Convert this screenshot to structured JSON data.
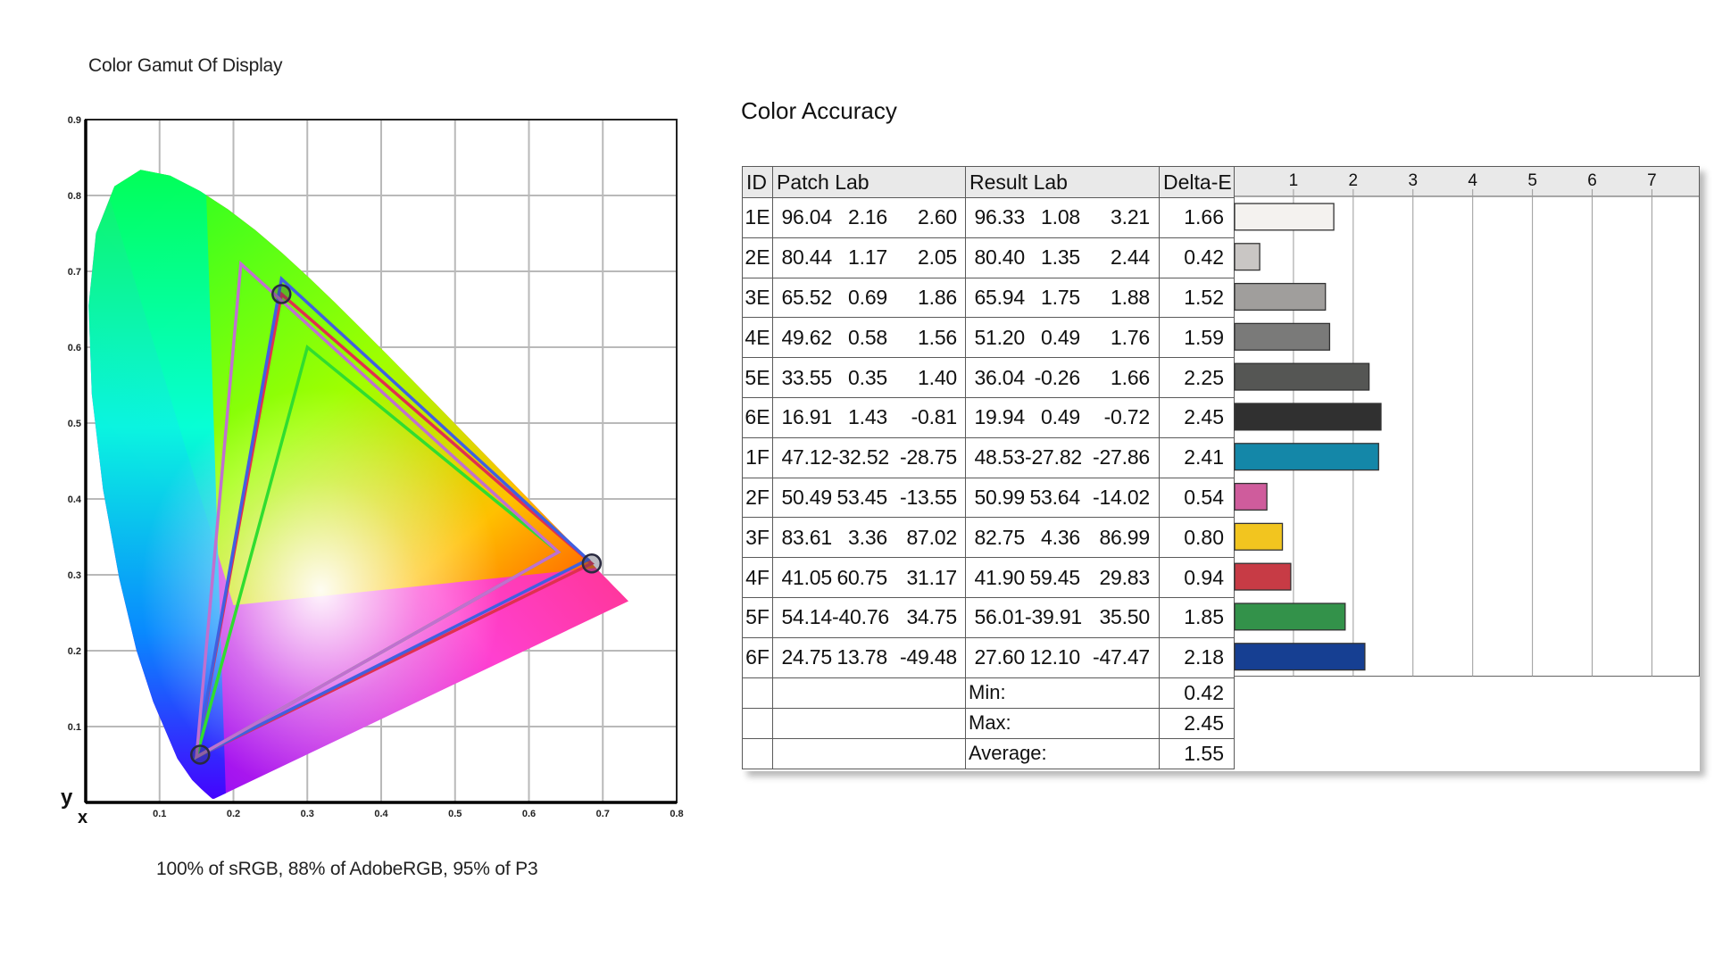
{
  "gamut": {
    "title": "Color Gamut Of Display",
    "caption": "100% of sRGB, 88% of AdobeRGB, 95% of P3",
    "axis_x_letter": "x",
    "axis_y_letter": "y",
    "x_ticks": [
      "0.1",
      "0.2",
      "0.3",
      "0.4",
      "0.5",
      "0.6",
      "0.7",
      "0.8"
    ],
    "y_ticks": [
      "0.1",
      "0.2",
      "0.3",
      "0.4",
      "0.5",
      "0.6",
      "0.7",
      "0.8",
      "0.9"
    ]
  },
  "accuracy": {
    "title": "Color Accuracy",
    "headers": {
      "id": "ID",
      "patch": "Patch Lab",
      "result": "Result Lab",
      "delta": "Delta-E"
    },
    "scale_ticks": [
      "1",
      "2",
      "3",
      "4",
      "5",
      "6",
      "7"
    ],
    "stats": [
      {
        "label": "Min:",
        "value": "0.42"
      },
      {
        "label": "Max:",
        "value": "2.45"
      },
      {
        "label": "Average:",
        "value": "1.55"
      }
    ]
  },
  "chart_data": [
    {
      "type": "scatter",
      "title": "Color Gamut Of Display",
      "subtitle": "100% of sRGB, 88% of AdobeRGB, 95% of P3",
      "xlabel": "x",
      "ylabel": "y",
      "xlim": [
        0,
        0.8
      ],
      "ylim": [
        0,
        0.9
      ],
      "grid": true,
      "series": [
        {
          "color": "#e03050",
          "points": [
            [
              0.685,
              0.315
            ],
            [
              0.265,
              0.67
            ],
            [
              0.15,
              0.06
            ]
          ]
        },
        {
          "color": "#4060e0",
          "points": [
            [
              0.68,
              0.32
            ],
            [
              0.265,
              0.69
            ],
            [
              0.15,
              0.06
            ]
          ]
        },
        {
          "color": "#30dd30",
          "points": [
            [
              0.64,
              0.33
            ],
            [
              0.3,
              0.6
            ],
            [
              0.15,
              0.06
            ]
          ]
        },
        {
          "color": "#c070d0",
          "points": [
            [
              0.64,
              0.33
            ],
            [
              0.21,
              0.71
            ],
            [
              0.15,
              0.06
            ]
          ]
        }
      ],
      "markers": [
        [
          0.265,
          0.67
        ],
        [
          0.685,
          0.315
        ],
        [
          0.155,
          0.063
        ]
      ]
    },
    {
      "type": "table",
      "title": "Color Accuracy",
      "columns": [
        "ID",
        "Patch Lab",
        "Result Lab",
        "Delta-E"
      ],
      "bar_axis": {
        "min": 0,
        "max": 7.8,
        "ticks": [
          1,
          2,
          3,
          4,
          5,
          6,
          7
        ]
      },
      "rows": [
        {
          "id": "1E",
          "patch": [
            "96.04",
            "2.16",
            "2.60"
          ],
          "result": [
            "96.33",
            "1.08",
            "3.21"
          ],
          "delta": "1.66",
          "value": 1.66,
          "color": "#f4f2ef"
        },
        {
          "id": "2E",
          "patch": [
            "80.44",
            "1.17",
            "2.05"
          ],
          "result": [
            "80.40",
            "1.35",
            "2.44"
          ],
          "delta": "0.42",
          "value": 0.42,
          "color": "#c9c6c4"
        },
        {
          "id": "3E",
          "patch": [
            "65.52",
            "0.69",
            "1.86"
          ],
          "result": [
            "65.94",
            "1.75",
            "1.88"
          ],
          "delta": "1.52",
          "value": 1.52,
          "color": "#a09e9c"
        },
        {
          "id": "4E",
          "patch": [
            "49.62",
            "0.58",
            "1.56"
          ],
          "result": [
            "51.20",
            "0.49",
            "1.76"
          ],
          "delta": "1.59",
          "value": 1.59,
          "color": "#7a7a79"
        },
        {
          "id": "5E",
          "patch": [
            "33.55",
            "0.35",
            "1.40"
          ],
          "result": [
            "36.04",
            "-0.26",
            "1.66"
          ],
          "delta": "2.25",
          "value": 2.25,
          "color": "#555654"
        },
        {
          "id": "6E",
          "patch": [
            "16.91",
            "1.43",
            "-0.81"
          ],
          "result": [
            "19.94",
            "0.49",
            "-0.72"
          ],
          "delta": "2.45",
          "value": 2.45,
          "color": "#303030"
        },
        {
          "id": "1F",
          "patch": [
            "47.12",
            "-32.52",
            "-28.75"
          ],
          "result": [
            "48.53",
            "-27.82",
            "-27.86"
          ],
          "delta": "2.41",
          "value": 2.41,
          "color": "#1487a8"
        },
        {
          "id": "2F",
          "patch": [
            "50.49",
            "53.45",
            "-13.55"
          ],
          "result": [
            "50.99",
            "53.64",
            "-14.02"
          ],
          "delta": "0.54",
          "value": 0.54,
          "color": "#cf5c9c"
        },
        {
          "id": "3F",
          "patch": [
            "83.61",
            "3.36",
            "87.02"
          ],
          "result": [
            "82.75",
            "4.36",
            "86.99"
          ],
          "delta": "0.80",
          "value": 0.8,
          "color": "#f2c51f"
        },
        {
          "id": "4F",
          "patch": [
            "41.05",
            "60.75",
            "31.17"
          ],
          "result": [
            "41.90",
            "59.45",
            "29.83"
          ],
          "delta": "0.94",
          "value": 0.94,
          "color": "#c73b45"
        },
        {
          "id": "5F",
          "patch": [
            "54.14",
            "-40.76",
            "34.75"
          ],
          "result": [
            "56.01",
            "-39.91",
            "35.50"
          ],
          "delta": "1.85",
          "value": 1.85,
          "color": "#33924a"
        },
        {
          "id": "6F",
          "patch": [
            "24.75",
            "13.78",
            "-49.48"
          ],
          "result": [
            "27.60",
            "12.10",
            "-47.47"
          ],
          "delta": "2.18",
          "value": 2.18,
          "color": "#163f92"
        }
      ]
    }
  ]
}
